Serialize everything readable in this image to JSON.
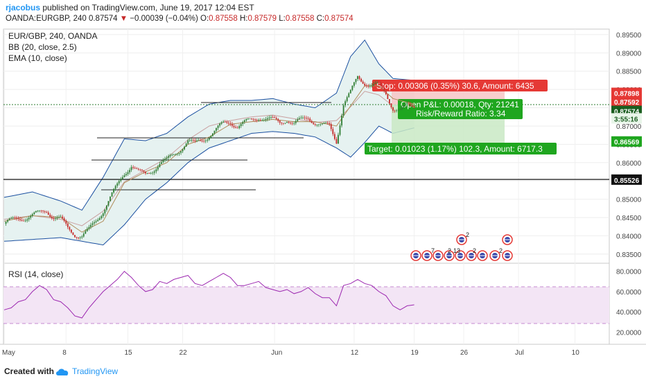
{
  "header": {
    "user": "rjacobus",
    "published_text": "published on TradingView.com, June 19, 2017 12:04 EST",
    "symbol": "OANDA:EURGBP, 240",
    "last": "0.87574",
    "change_arrow": "▼",
    "change": "−0.00039 (−0.04%)",
    "o_label": "O:",
    "o_value": "0.87558",
    "h_label": "H:",
    "h_value": "0.87579",
    "l_label": "L:",
    "l_value": "0.87558",
    "c_label": "C:",
    "c_value": "0.87574"
  },
  "legend": {
    "symbol": "EUR/GBP, 240, OANDA",
    "bb": "BB (20, close, 2.5)",
    "ema": "EMA (10, close)"
  },
  "footer": {
    "created_with": "Created with",
    "brand": "TradingView",
    "logo_icon": "tradingview-cloud-icon"
  },
  "colors": {
    "candle_up": "#2e7d32",
    "candle_down": "#c62828",
    "bb_line": "#1a4fa0",
    "bb_fill": "#e6f2f1",
    "ema": "#b08c5a",
    "rsi_line": "#9c27b0",
    "rsi_band": "#f3e5f5",
    "stop": "#e53935",
    "target": "#1fa61f",
    "current": "#1b5e20"
  },
  "chart_data": [
    {
      "type": "candlestick",
      "title": "EUR/GBP, 240, OANDA",
      "indicators": [
        "BB (20, close, 2.5)",
        "EMA (10, close)"
      ],
      "x_tick_labels": [
        "May",
        "8",
        "15",
        "22",
        "Jun",
        "12",
        "19",
        "26",
        "Jul",
        "10"
      ],
      "y_tick_labels": [
        "0.89500",
        "0.89000",
        "0.88500",
        "0.88000",
        "0.87500",
        "0.87000",
        "0.86500",
        "0.86000",
        "0.85500",
        "0.85000",
        "0.84500",
        "0.84000",
        "0.83500"
      ],
      "ylim": [
        0.8325,
        0.8965
      ],
      "close_path": [
        [
          0,
          0.8433
        ],
        [
          4,
          0.844
        ],
        [
          8,
          0.8448
        ],
        [
          12,
          0.845
        ],
        [
          16,
          0.8455
        ],
        [
          20,
          0.8462
        ],
        [
          24,
          0.847
        ],
        [
          28,
          0.8452
        ],
        [
          32,
          0.8445
        ],
        [
          36,
          0.842
        ],
        [
          40,
          0.8405
        ],
        [
          44,
          0.84
        ],
        [
          48,
          0.8415
        ],
        [
          52,
          0.844
        ],
        [
          56,
          0.847
        ],
        [
          60,
          0.8505
        ],
        [
          64,
          0.8535
        ],
        [
          68,
          0.857
        ],
        [
          72,
          0.8595
        ],
        [
          76,
          0.8575
        ],
        [
          80,
          0.8565
        ],
        [
          84,
          0.858
        ],
        [
          88,
          0.86
        ],
        [
          92,
          0.8605
        ],
        [
          96,
          0.862
        ],
        [
          100,
          0.864
        ],
        [
          104,
          0.866
        ],
        [
          108,
          0.865
        ],
        [
          112,
          0.8662
        ],
        [
          116,
          0.8675
        ],
        [
          120,
          0.869
        ],
        [
          124,
          0.8705
        ],
        [
          128,
          0.8712
        ],
        [
          132,
          0.87
        ],
        [
          136,
          0.8708
        ],
        [
          140,
          0.8716
        ],
        [
          144,
          0.8725
        ],
        [
          148,
          0.872
        ],
        [
          152,
          0.8715
        ],
        [
          156,
          0.871
        ],
        [
          160,
          0.872
        ],
        [
          164,
          0.8705
        ],
        [
          168,
          0.8715
        ],
        [
          172,
          0.8725
        ],
        [
          176,
          0.871
        ],
        [
          180,
          0.87
        ],
        [
          184,
          0.87
        ],
        [
          188,
          0.866
        ],
        [
          192,
          0.876
        ],
        [
          196,
          0.879
        ],
        [
          200,
          0.8835
        ],
        [
          204,
          0.882
        ],
        [
          208,
          0.881
        ],
        [
          212,
          0.881
        ],
        [
          216,
          0.879
        ],
        [
          220,
          0.875
        ],
        [
          224,
          0.874
        ],
        [
          228,
          0.8755
        ],
        [
          232,
          0.8757
        ]
      ],
      "bb_upper": [
        [
          0,
          0.8505
        ],
        [
          16,
          0.852
        ],
        [
          32,
          0.8495
        ],
        [
          44,
          0.847
        ],
        [
          56,
          0.856
        ],
        [
          68,
          0.8665
        ],
        [
          80,
          0.866
        ],
        [
          92,
          0.868
        ],
        [
          104,
          0.8725
        ],
        [
          116,
          0.876
        ],
        [
          128,
          0.877
        ],
        [
          140,
          0.877
        ],
        [
          152,
          0.8775
        ],
        [
          164,
          0.876
        ],
        [
          176,
          0.875
        ],
        [
          188,
          0.879
        ],
        [
          196,
          0.889
        ],
        [
          204,
          0.8935
        ],
        [
          212,
          0.887
        ],
        [
          220,
          0.883
        ],
        [
          232,
          0.8825
        ]
      ],
      "bb_lower": [
        [
          0,
          0.8385
        ],
        [
          16,
          0.839
        ],
        [
          32,
          0.8395
        ],
        [
          44,
          0.8385
        ],
        [
          56,
          0.8375
        ],
        [
          68,
          0.843
        ],
        [
          80,
          0.85
        ],
        [
          92,
          0.8545
        ],
        [
          104,
          0.86
        ],
        [
          116,
          0.864
        ],
        [
          128,
          0.866
        ],
        [
          140,
          0.868
        ],
        [
          152,
          0.8685
        ],
        [
          164,
          0.868
        ],
        [
          176,
          0.867
        ],
        [
          188,
          0.864
        ],
        [
          196,
          0.8615
        ],
        [
          204,
          0.8655
        ],
        [
          212,
          0.87
        ],
        [
          220,
          0.868
        ],
        [
          232,
          0.8695
        ]
      ],
      "ema": [
        [
          0,
          0.844
        ],
        [
          16,
          0.8455
        ],
        [
          32,
          0.845
        ],
        [
          44,
          0.841
        ],
        [
          56,
          0.844
        ],
        [
          68,
          0.8545
        ],
        [
          80,
          0.8575
        ],
        [
          92,
          0.86
        ],
        [
          104,
          0.865
        ],
        [
          116,
          0.867
        ],
        [
          128,
          0.8705
        ],
        [
          140,
          0.8712
        ],
        [
          152,
          0.8718
        ],
        [
          164,
          0.8712
        ],
        [
          176,
          0.8712
        ],
        [
          188,
          0.87
        ],
        [
          196,
          0.8755
        ],
        [
          204,
          0.881
        ],
        [
          212,
          0.881
        ],
        [
          220,
          0.8775
        ],
        [
          232,
          0.876
        ]
      ],
      "horizontal_lines": [
        0.85526
      ],
      "price_badges": [
        "0.87898",
        "0.87592",
        "0.87574",
        "3:55:16",
        "0.86569",
        "0.85526"
      ],
      "position": {
        "stop_label": "Stop: 0.00306 (0.35%) 30.6, Amount: 6435",
        "pnl_label": "Open P&L: 0.00018, Qty: 21241",
        "rr_label": "Risk/Reward Ratio: 3.34",
        "target_label": "Target: 0.01023 (1.17%) 102.3, Amount: 6717.3",
        "stop_price": 0.87898,
        "entry_price": 0.87592,
        "target_price": 0.86569
      },
      "event_counts": [
        "7",
        "2",
        "13",
        "2",
        "2",
        "2"
      ]
    },
    {
      "type": "line",
      "title": "RSI (14, close)",
      "y_tick_labels": [
        "80.0000",
        "60.0000",
        "40.0000",
        "20.0000"
      ],
      "ylim": [
        8,
        88
      ],
      "bands": [
        30,
        70
      ],
      "values": [
        [
          0,
          42
        ],
        [
          4,
          44
        ],
        [
          8,
          50
        ],
        [
          12,
          52
        ],
        [
          16,
          60
        ],
        [
          20,
          66
        ],
        [
          24,
          62
        ],
        [
          28,
          52
        ],
        [
          32,
          50
        ],
        [
          36,
          44
        ],
        [
          40,
          36
        ],
        [
          44,
          34
        ],
        [
          48,
          44
        ],
        [
          52,
          52
        ],
        [
          56,
          60
        ],
        [
          60,
          66
        ],
        [
          64,
          72
        ],
        [
          68,
          80
        ],
        [
          72,
          74
        ],
        [
          76,
          66
        ],
        [
          80,
          60
        ],
        [
          84,
          62
        ],
        [
          88,
          70
        ],
        [
          92,
          68
        ],
        [
          96,
          72
        ],
        [
          100,
          74
        ],
        [
          104,
          76
        ],
        [
          108,
          68
        ],
        [
          112,
          66
        ],
        [
          116,
          70
        ],
        [
          120,
          74
        ],
        [
          124,
          78
        ],
        [
          128,
          74
        ],
        [
          132,
          66
        ],
        [
          136,
          66
        ],
        [
          140,
          68
        ],
        [
          144,
          70
        ],
        [
          148,
          64
        ],
        [
          152,
          62
        ],
        [
          156,
          60
        ],
        [
          160,
          62
        ],
        [
          164,
          58
        ],
        [
          168,
          60
        ],
        [
          172,
          64
        ],
        [
          176,
          58
        ],
        [
          180,
          54
        ],
        [
          184,
          54
        ],
        [
          188,
          46
        ],
        [
          192,
          66
        ],
        [
          196,
          68
        ],
        [
          200,
          72
        ],
        [
          204,
          68
        ],
        [
          208,
          66
        ],
        [
          212,
          60
        ],
        [
          216,
          56
        ],
        [
          220,
          46
        ],
        [
          224,
          42
        ],
        [
          228,
          46
        ],
        [
          232,
          47
        ]
      ]
    }
  ]
}
